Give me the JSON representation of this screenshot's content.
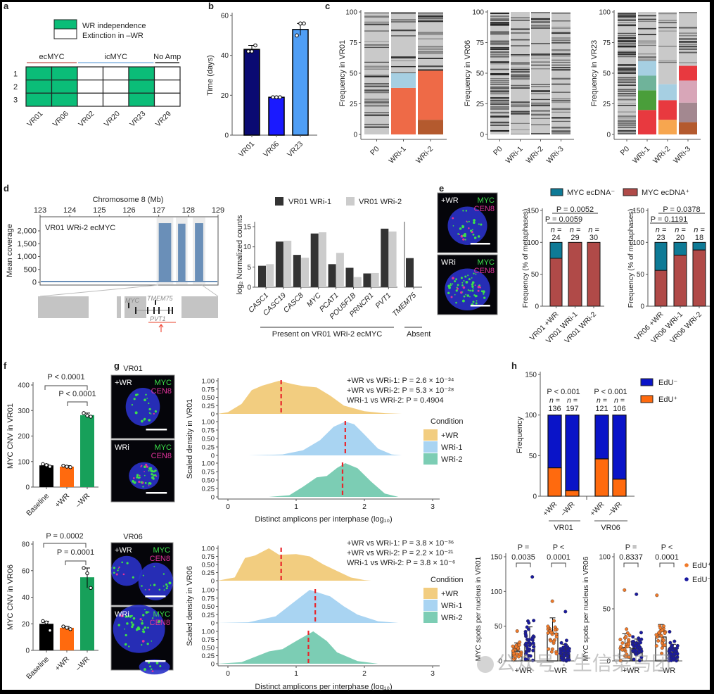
{
  "panel_labels": [
    "a",
    "b",
    "c",
    "d",
    "e",
    "f",
    "g",
    "h"
  ],
  "watermark": "公众号 · 生信菜鸟团",
  "images": {
    "g_vr01_title": "VR01",
    "g_vr06_title": "VR06",
    "conditions": [
      "+WR",
      "WRi"
    ],
    "channels": [
      "MYC",
      "CEN8"
    ],
    "channel_colors": {
      "MYC": "#3ce04a",
      "CEN8": "#e0329a",
      "DAPI": "#2233cc"
    }
  },
  "chart_data": [
    {
      "type": "table",
      "panel": "a",
      "legend": [
        "WR independence",
        "Extinction in –WR"
      ],
      "groups": [
        {
          "label": "ecMYC",
          "columns": [
            0,
            1
          ],
          "color": "#c0504d"
        },
        {
          "label": "icMYC",
          "columns": [
            2,
            3,
            4
          ],
          "color": "#6fa8dc"
        },
        {
          "label": "No Amp",
          "columns": [
            5
          ],
          "color": "#000000"
        }
      ],
      "rows": [
        "1",
        "2",
        "3"
      ],
      "columns": [
        "VR01",
        "VR06",
        "VR02",
        "VR20",
        "VR23",
        "VR29"
      ],
      "wr_independent": [
        true,
        true,
        false,
        false,
        true,
        false
      ],
      "independence_color": "#0bbd78"
    },
    {
      "type": "bar",
      "panel": "b",
      "categories": [
        "VR01",
        "VR06",
        "VR23"
      ],
      "values": [
        43,
        19,
        53
      ],
      "points": [
        [
          42,
          42,
          45
        ],
        [
          19,
          19,
          19
        ],
        [
          50,
          56,
          56
        ]
      ],
      "colors": [
        "#0a0a72",
        "#1a1aff",
        "#4f9ef5"
      ],
      "ylabel": "Time (days)",
      "ylim": [
        0,
        60
      ],
      "yticks": [
        0,
        20,
        40,
        60
      ]
    },
    {
      "type": "bar",
      "stacked": true,
      "panel": "c",
      "ylabel": "Frequency in VR01",
      "categories": [
        "P0",
        "WRi-1",
        "WRi-2"
      ],
      "ylim": [
        0,
        100
      ],
      "yticks": [
        0,
        25,
        50,
        75,
        100
      ],
      "segments": [
        [],
        [
          {
            "from": 0,
            "to": 38,
            "color": "#ee6a47"
          },
          {
            "from": 38,
            "to": 50,
            "color": "#a6cfe2"
          }
        ],
        [
          {
            "from": 0,
            "to": 12,
            "color": "#b45a2e"
          },
          {
            "from": 12,
            "to": 52,
            "color": "#ee6a47"
          }
        ]
      ]
    },
    {
      "type": "bar",
      "stacked": true,
      "panel": "c",
      "ylabel": "Frequency in VR06",
      "categories": [
        "P0",
        "WRi-1",
        "WRi-2",
        "WRi-3"
      ],
      "ylim": [
        0,
        100
      ],
      "yticks": [
        0,
        25,
        50,
        75,
        100
      ],
      "segments": [
        [],
        [],
        [],
        []
      ]
    },
    {
      "type": "bar",
      "stacked": true,
      "panel": "c",
      "ylabel": "Frequency in VR23",
      "categories": [
        "P0",
        "WRi-1",
        "WRi-2",
        "WRi-3"
      ],
      "ylim": [
        0,
        100
      ],
      "yticks": [
        0,
        25,
        50,
        75,
        100
      ],
      "segments": [
        [],
        [
          {
            "from": 0,
            "to": 20,
            "color": "#e8393f"
          },
          {
            "from": 20,
            "to": 36,
            "color": "#4a9e3a"
          },
          {
            "from": 36,
            "to": 48,
            "color": "#6fb39a"
          },
          {
            "from": 48,
            "to": 60,
            "color": "#a6cfe2"
          }
        ],
        [
          {
            "from": 0,
            "to": 12,
            "color": "#f7a64f"
          },
          {
            "from": 12,
            "to": 28,
            "color": "#e8393f"
          },
          {
            "from": 28,
            "to": 41,
            "color": "#a6cfe2"
          }
        ],
        [
          {
            "from": 0,
            "to": 10,
            "color": "#b45a2e"
          },
          {
            "from": 10,
            "to": 26,
            "color": "#a38890"
          },
          {
            "from": 26,
            "to": 44,
            "color": "#d8a6b8"
          },
          {
            "from": 44,
            "to": 56,
            "color": "#e8393f"
          }
        ]
      ]
    },
    {
      "type": "area",
      "panel": "d",
      "title": "VR01 WRi-2 ecMYC",
      "xlabel": "Chromosome 8 (Mb)",
      "xticks": [
        123,
        124,
        125,
        126,
        127,
        128,
        129
      ],
      "xlim": [
        123,
        129
      ],
      "ylabel": "Mean coverage",
      "yticks": [
        0,
        500,
        1000,
        1500,
        2000
      ],
      "ytick_labels": [
        "0",
        "500",
        "1,000",
        "1,500",
        "2,000"
      ],
      "amplified_regions": [
        [
          127.0,
          127.42,
          2300
        ],
        [
          127.65,
          127.9,
          2280
        ],
        [
          128.22,
          128.5,
          2300
        ]
      ],
      "baseline": 30,
      "color": "#6a8fb8",
      "genes": [
        "MYC",
        "TMEM75",
        "PVT1"
      ]
    },
    {
      "type": "bar",
      "panel": "d",
      "ylabel": "log₂ Normalized counts",
      "categories": [
        "CASC1",
        "CASC19",
        "CASC8",
        "MYC",
        "PCAT1",
        "POU5F1B",
        "PRNCR1",
        "PVT1",
        "TMEM75"
      ],
      "series": [
        {
          "name": "VR01 WRi-1",
          "color": "#333333",
          "values": [
            5.3,
            11.3,
            8.0,
            13.3,
            5.7,
            4.8,
            3.4,
            14.5,
            7.2
          ]
        },
        {
          "name": "VR01 WRi-2",
          "color": "#cccccc",
          "values": [
            5.7,
            11.5,
            7.3,
            13.6,
            8.5,
            2.5,
            3.5,
            13.8,
            0
          ]
        }
      ],
      "ylim": [
        0,
        15
      ],
      "yticks": [
        0,
        5,
        10,
        15
      ],
      "groups": [
        {
          "label": "Present on VR01 WRi-2 ecMYC",
          "count": 8
        },
        {
          "label": "Absent",
          "count": 1
        }
      ]
    },
    {
      "type": "bar",
      "stacked": true,
      "panel": "e",
      "ylabel": "Frequency (% of metaphases)",
      "categories": [
        "VR01 +WR",
        "VR01 WRi-1",
        "VR01 WRi-2"
      ],
      "positive": [
        75,
        100,
        100
      ],
      "n": [
        "24",
        "29",
        "30"
      ],
      "n_label": "n =",
      "pvalues": [
        {
          "label": "P = 0.0052",
          "between": [
            0,
            2
          ]
        },
        {
          "label": "P = 0.0059",
          "between": [
            0,
            1
          ]
        }
      ],
      "ylim": [
        0,
        150
      ],
      "yticks": [
        0,
        50,
        100,
        150
      ],
      "legend": [
        {
          "name": "MYC ecDNA⁻",
          "color": "#0e7a96"
        },
        {
          "name": "MYC ecDNA⁺",
          "color": "#b04a48"
        }
      ]
    },
    {
      "type": "bar",
      "stacked": true,
      "panel": "e",
      "ylabel": "Frequency (% of metaphases)",
      "categories": [
        "VR06 +WR",
        "VR06 WRi-1",
        "VR06 WRi-2"
      ],
      "positive": [
        56,
        80,
        88
      ],
      "n": [
        "23",
        "20",
        "18"
      ],
      "n_label": "n =",
      "pvalues": [
        {
          "label": "P = 0.0378",
          "between": [
            0,
            2
          ]
        },
        {
          "label": "P = 0.1191",
          "between": [
            0,
            1
          ]
        }
      ],
      "ylim": [
        0,
        150
      ],
      "yticks": [
        0,
        50,
        100,
        150
      ]
    },
    {
      "type": "bar",
      "panel": "f",
      "ylabel": "MYC CNV in VR01",
      "categories": [
        "Baseline",
        "+WR",
        "–WR"
      ],
      "values": [
        85,
        80,
        282
      ],
      "points": [
        [
          90,
          86,
          80
        ],
        [
          84,
          80,
          78
        ],
        [
          290,
          280,
          276
        ]
      ],
      "colors": [
        "#000000",
        "#ff6a0e",
        "#17a05a"
      ],
      "ylim": [
        0,
        400
      ],
      "yticks": [
        0,
        100,
        200,
        300,
        400
      ],
      "pvalues": [
        {
          "label": "P < 0.0001",
          "between": [
            0,
            2
          ]
        },
        {
          "label": "P < 0.0001",
          "between": [
            1,
            2
          ]
        }
      ]
    },
    {
      "type": "bar",
      "panel": "f",
      "ylabel": "MYC CNV in VR06",
      "categories": [
        "Baseline",
        "+WR",
        "–WR"
      ],
      "values": [
        20,
        17,
        55
      ],
      "points": [
        [
          22,
          21,
          15
        ],
        [
          18,
          17,
          16
        ],
        [
          62,
          58,
          47
        ]
      ],
      "colors": [
        "#000000",
        "#ff6a0e",
        "#17a05a"
      ],
      "ylim": [
        0,
        80
      ],
      "yticks": [
        0,
        20,
        40,
        60,
        80
      ],
      "pvalues": [
        {
          "label": "P = 0.0002",
          "between": [
            0,
            2
          ]
        },
        {
          "label": "P = 0.0001",
          "between": [
            1,
            2
          ]
        }
      ]
    },
    {
      "type": "area",
      "panel": "g",
      "ylabel": "Scaled density in VR01",
      "xlabel": "Distinct amplicons per interphase (log₁₀)",
      "xlim": [
        -0.2,
        3.2
      ],
      "xticks": [
        0,
        1,
        2,
        3
      ],
      "yticks": [
        "0",
        "0.25",
        "0.50",
        "0.75",
        "1.00"
      ],
      "legend_title": "Condition",
      "annotations": [
        "+WR vs WRi-1: P = 2.6 × 10⁻³⁴",
        "+WR vs WRi-2: P = 5.3 × 10⁻²⁸",
        "WRi-1 vs WRi-2: P = 0.4904"
      ],
      "series": [
        {
          "name": "+WR",
          "color": "#f2cd80",
          "median": 0.78,
          "points": [
            [
              -0.15,
              0
            ],
            [
              0,
              0.05
            ],
            [
              0.2,
              0.3
            ],
            [
              0.35,
              0.72
            ],
            [
              0.5,
              0.85
            ],
            [
              0.75,
              1.0
            ],
            [
              0.95,
              0.9
            ],
            [
              1.1,
              0.84
            ],
            [
              1.3,
              0.8
            ],
            [
              1.5,
              0.55
            ],
            [
              1.7,
              0.25
            ],
            [
              2.0,
              0.08
            ],
            [
              2.3,
              0.02
            ],
            [
              2.55,
              0
            ]
          ]
        },
        {
          "name": "WRi-1",
          "color": "#a9d4f2",
          "median": 1.72,
          "points": [
            [
              0.3,
              0
            ],
            [
              0.8,
              0.03
            ],
            [
              1.1,
              0.15
            ],
            [
              1.35,
              0.45
            ],
            [
              1.55,
              0.85
            ],
            [
              1.72,
              1.0
            ],
            [
              1.85,
              0.92
            ],
            [
              2.0,
              0.62
            ],
            [
              2.2,
              0.2
            ],
            [
              2.4,
              0.03
            ],
            [
              2.55,
              0
            ]
          ]
        },
        {
          "name": "WRi-2",
          "color": "#7ccdb4",
          "median": 1.68,
          "points": [
            [
              0.6,
              0
            ],
            [
              0.9,
              0.05
            ],
            [
              1.1,
              0.3
            ],
            [
              1.3,
              0.58
            ],
            [
              1.45,
              0.62
            ],
            [
              1.6,
              0.86
            ],
            [
              1.72,
              1.0
            ],
            [
              1.9,
              0.85
            ],
            [
              2.1,
              0.45
            ],
            [
              2.3,
              0.1
            ],
            [
              2.5,
              0
            ]
          ]
        }
      ]
    },
    {
      "type": "area",
      "panel": "g",
      "ylabel": "Scaled density in VR06",
      "xlabel": "Distinct amplicons per interphase (log₁₀)",
      "xlim": [
        -0.2,
        3.2
      ],
      "xticks": [
        0,
        1,
        2,
        3
      ],
      "yticks": [
        "0",
        "0.25",
        "0.50",
        "0.75",
        "1.00"
      ],
      "legend_title": "Condition",
      "annotations": [
        "+WR vs WRi-1: P = 3.8 × 10⁻³⁶",
        "+WR vs WRi-2: P = 2.2 × 10⁻²¹",
        "WRi-1 vs WRi-2: P = 3.8 × 10⁻⁶"
      ],
      "series": [
        {
          "name": "+WR",
          "color": "#f2cd80",
          "median": 0.78,
          "points": [
            [
              -0.15,
              0
            ],
            [
              0.1,
              0.1
            ],
            [
              0.25,
              0.7
            ],
            [
              0.4,
              0.78
            ],
            [
              0.6,
              1.0
            ],
            [
              0.75,
              0.8
            ],
            [
              1.0,
              0.82
            ],
            [
              1.2,
              0.75
            ],
            [
              1.4,
              0.5
            ],
            [
              1.6,
              0.3
            ],
            [
              1.8,
              0.1
            ],
            [
              2.0,
              0.02
            ],
            [
              2.1,
              0
            ]
          ]
        },
        {
          "name": "WRi-1",
          "color": "#a9d4f2",
          "median": 1.28,
          "points": [
            [
              -0.15,
              0
            ],
            [
              0.3,
              0.02
            ],
            [
              0.7,
              0.2
            ],
            [
              0.95,
              0.6
            ],
            [
              1.2,
              1.0
            ],
            [
              1.5,
              0.8
            ],
            [
              1.7,
              0.5
            ],
            [
              1.9,
              0.25
            ],
            [
              2.2,
              0.05
            ],
            [
              2.5,
              0
            ]
          ]
        },
        {
          "name": "WRi-2",
          "color": "#7ccdb4",
          "median": 1.18,
          "points": [
            [
              -0.15,
              0
            ],
            [
              0.2,
              0.05
            ],
            [
              0.6,
              0.38
            ],
            [
              0.8,
              0.45
            ],
            [
              1.0,
              0.7
            ],
            [
              1.25,
              1.0
            ],
            [
              1.45,
              0.7
            ],
            [
              1.6,
              0.35
            ],
            [
              1.9,
              0.08
            ],
            [
              2.2,
              0
            ]
          ]
        }
      ]
    },
    {
      "type": "bar",
      "stacked": true,
      "panel": "h",
      "ylabel": "Frequency",
      "categories": [
        "+WR",
        "–WR",
        "+WR",
        "–WR"
      ],
      "groups": [
        "VR01",
        "VR06"
      ],
      "edu_positive": [
        35,
        7,
        46,
        21
      ],
      "n": [
        "136",
        "197",
        "121",
        "106"
      ],
      "n_label": "n =",
      "pvalues": [
        "P < 0.001",
        "P < 0.001"
      ],
      "ylim": [
        0,
        150
      ],
      "yticks": [
        0,
        50,
        100,
        150
      ],
      "legend": [
        {
          "name": "EdU⁻",
          "color": "#0a14c8"
        },
        {
          "name": "EdU⁺",
          "color": "#ff6a0e"
        }
      ]
    },
    {
      "type": "scatter",
      "panel": "h",
      "ylabel": "MYC spots per nucleus in VR01",
      "categories": [
        "+WR",
        "–WR"
      ],
      "series": [
        {
          "name": "EdU⁺",
          "color": "#f07a2a",
          "mean": [
            14,
            40
          ],
          "sd": [
            12,
            22
          ],
          "max": [
            43,
            86
          ]
        },
        {
          "name": "EdU⁻",
          "color": "#1a1aa0",
          "mean": [
            25,
            10
          ],
          "sd": [
            24,
            14
          ],
          "max": [
            121,
            71
          ]
        }
      ],
      "pvalues": [
        {
          "top": "P =",
          "bottom": "0.0035"
        },
        {
          "top": "P <",
          "bottom": "0.0001"
        }
      ],
      "ylim": [
        0,
        150
      ],
      "yticks": [
        0,
        50,
        100,
        150
      ]
    },
    {
      "type": "scatter",
      "panel": "h",
      "ylabel": "MYC spots per nucleus in VR06",
      "categories": [
        "+WR",
        "–WR"
      ],
      "series": [
        {
          "name": "EdU⁺",
          "color": "#f07a2a",
          "mean": [
            13,
            23
          ],
          "sd": [
            13,
            12
          ],
          "max": [
            68,
            63
          ]
        },
        {
          "name": "EdU⁻",
          "color": "#1a1aa0",
          "mean": [
            12,
            8
          ],
          "sd": [
            9,
            8
          ],
          "max": [
            64,
            28
          ]
        }
      ],
      "pvalues": [
        {
          "top": "P =",
          "bottom": "0.8337"
        },
        {
          "top": "P <",
          "bottom": "0.0001"
        }
      ],
      "ylim": [
        0,
        100
      ],
      "yticks": [
        0,
        50,
        100
      ]
    }
  ]
}
